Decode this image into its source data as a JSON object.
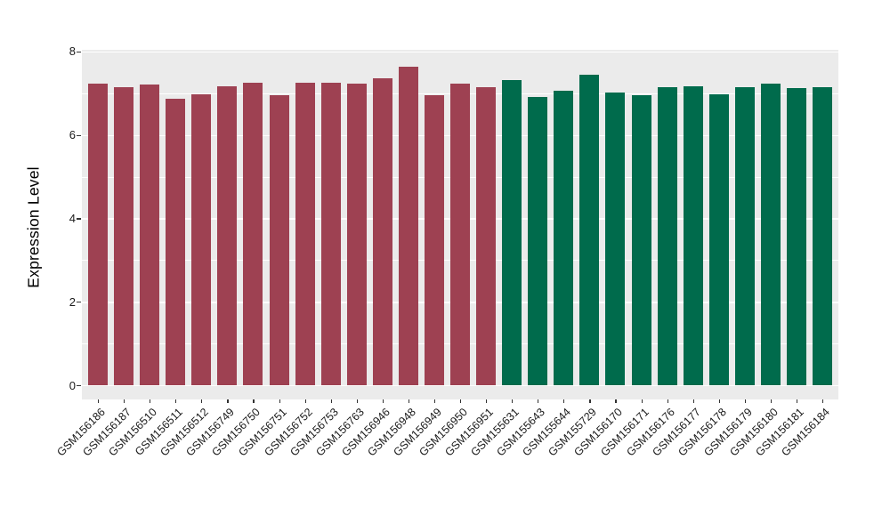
{
  "chart_data": {
    "type": "bar",
    "title": "",
    "xlabel": "",
    "ylabel": "Expression Level",
    "ylim": [
      0,
      8
    ],
    "yticks": [
      0,
      2,
      4,
      6,
      8
    ],
    "minor_gridlines": [
      1,
      3,
      5,
      7
    ],
    "grid": "on",
    "legend": "none",
    "panel_background": "#EBEBEB",
    "gridline_color": "#FFFFFF",
    "categories": [
      "GSM156186",
      "GSM156187",
      "GSM156510",
      "GSM156511",
      "GSM156512",
      "GSM156749",
      "GSM156750",
      "GSM156751",
      "GSM156752",
      "GSM156753",
      "GSM156763",
      "GSM156946",
      "GSM156948",
      "GSM156949",
      "GSM156950",
      "GSM156951",
      "GSM155631",
      "GSM155643",
      "GSM155644",
      "GSM155729",
      "GSM156170",
      "GSM156171",
      "GSM156176",
      "GSM156177",
      "GSM156178",
      "GSM156179",
      "GSM156180",
      "GSM156181",
      "GSM156184"
    ],
    "values": [
      7.23,
      7.15,
      7.21,
      6.87,
      6.97,
      7.17,
      7.25,
      6.96,
      7.25,
      7.26,
      7.23,
      7.36,
      7.64,
      6.96,
      7.23,
      7.15,
      7.32,
      6.91,
      7.06,
      7.45,
      7.02,
      6.96,
      7.15,
      7.17,
      6.98,
      7.15,
      7.23,
      7.12,
      7.15
    ],
    "bar_groups": [
      "red",
      "red",
      "red",
      "red",
      "red",
      "red",
      "red",
      "red",
      "red",
      "red",
      "red",
      "red",
      "red",
      "red",
      "red",
      "red",
      "green",
      "green",
      "green",
      "green",
      "green",
      "green",
      "green",
      "green",
      "green",
      "green",
      "green",
      "green",
      "green"
    ],
    "group_colors": {
      "red": "#9E4152",
      "green": "#006B4C"
    }
  }
}
